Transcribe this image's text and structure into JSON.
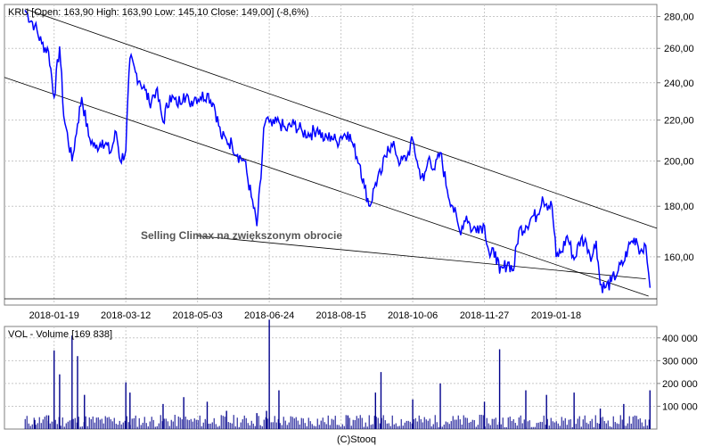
{
  "footer": "(C)Stooq",
  "colors": {
    "price": "#0000ff",
    "volume": "#00008b",
    "grid": "#c8c8c8",
    "frame": "#7f7f7f",
    "trend": "#000000"
  },
  "chart_data": [
    {
      "type": "line",
      "title": "KRU [Open: 163,90  High: 163,90  Low: 145,10  Close: 149,00]  (-8,6%)",
      "x_tick_labels": [
        "2018-01-19",
        "2018-03-12",
        "2018-05-03",
        "2018-06-24",
        "2018-08-15",
        "2018-10-06",
        "2018-11-27",
        "2019-01-18"
      ],
      "y_tick_labels": [
        "160,00",
        "180,00",
        "200,00",
        "220,00",
        "240,00",
        "260,00",
        "280,00"
      ],
      "y_scale": "log",
      "ylim": [
        143,
        288
      ],
      "annotation": "Selling Climax na zwiększonym obrocie",
      "grid": true,
      "series": [
        {
          "x": [
            "2017-12-29",
            "2018-01-05",
            "2018-01-10",
            "2018-01-15",
            "2018-01-19",
            "2018-01-23",
            "2018-01-26",
            "2018-02-01",
            "2018-02-05",
            "2018-02-08",
            "2018-02-13",
            "2018-02-18",
            "2018-02-23",
            "2018-03-01",
            "2018-03-05",
            "2018-03-08",
            "2018-03-12",
            "2018-03-15",
            "2018-03-19",
            "2018-03-22",
            "2018-03-26",
            "2018-03-29",
            "2018-04-03",
            "2018-04-08",
            "2018-04-13",
            "2018-04-18",
            "2018-04-23",
            "2018-04-27",
            "2018-05-01",
            "2018-05-05",
            "2018-05-10",
            "2018-05-15",
            "2018-05-20",
            "2018-05-24",
            "2018-05-28",
            "2018-06-01",
            "2018-06-06",
            "2018-06-11",
            "2018-06-15",
            "2018-06-18",
            "2018-06-20",
            "2018-06-22",
            "2018-06-24",
            "2018-06-26",
            "2018-07-01",
            "2018-07-06",
            "2018-07-12",
            "2018-07-18",
            "2018-07-24",
            "2018-07-29",
            "2018-08-03",
            "2018-08-08",
            "2018-08-12",
            "2018-08-15",
            "2018-08-20",
            "2018-08-24",
            "2018-08-29",
            "2018-09-01",
            "2018-09-05",
            "2018-09-09",
            "2018-09-13",
            "2018-09-18",
            "2018-09-23",
            "2018-09-27",
            "2018-10-02",
            "2018-10-06",
            "2018-10-10",
            "2018-10-14",
            "2018-10-18",
            "2018-10-22",
            "2018-10-26",
            "2018-10-31",
            "2018-11-04",
            "2018-11-09",
            "2018-11-14",
            "2018-11-18",
            "2018-11-22",
            "2018-11-27",
            "2018-12-01",
            "2018-12-05",
            "2018-12-08",
            "2018-12-11",
            "2018-12-14",
            "2018-12-18",
            "2018-12-22",
            "2018-12-27",
            "2019-01-01",
            "2019-01-04",
            "2019-01-08",
            "2019-01-11",
            "2019-01-15",
            "2019-01-18",
            "2019-01-22",
            "2019-01-26",
            "2019-01-31",
            "2019-02-05",
            "2019-02-09",
            "2019-02-13",
            "2019-02-16",
            "2019-02-19",
            "2019-02-23",
            "2019-02-27",
            "2019-03-04",
            "2019-03-08",
            "2019-03-11",
            "2019-03-14",
            "2019-03-17",
            "2019-03-20",
            "2019-03-23",
            "2019-03-25",
            "2019-03-27"
          ],
          "values": [
            284,
            274,
            263,
            258,
            232,
            261,
            222,
            200,
            218,
            232,
            212,
            206,
            210,
            204,
            214,
            200,
            205,
            254,
            246,
            241,
            236,
            229,
            236,
            219,
            233,
            228,
            234,
            229,
            232,
            232,
            234,
            228,
            212,
            210,
            208,
            203,
            200,
            184,
            172,
            192,
            216,
            221,
            219,
            217,
            219,
            215,
            218,
            214,
            213,
            216,
            210,
            212,
            209,
            212,
            214,
            207,
            198,
            188,
            180,
            190,
            194,
            207,
            206,
            199,
            202,
            210,
            197,
            191,
            202,
            196,
            204,
            187,
            180,
            170,
            176,
            170,
            172,
            172,
            160,
            162,
            154,
            156,
            158,
            155,
            170,
            172,
            176,
            176,
            184,
            181,
            180,
            160,
            162,
            168,
            159,
            167,
            165,
            160,
            166,
            150,
            149,
            151,
            155,
            158,
            163,
            166,
            167,
            162,
            165,
            158,
            149
          ]
        }
      ]
    },
    {
      "type": "bar",
      "title": "VOL - Volume [169 838]",
      "y_tick_labels": [
        "100 000",
        "200 000",
        "300 000",
        "400 000"
      ],
      "ylim": [
        0,
        450000
      ],
      "grid": true,
      "series": [
        {
          "x": [
            "2018-01-05",
            "2018-01-15",
            "2018-01-19",
            "2018-01-23",
            "2018-02-01",
            "2018-02-05",
            "2018-02-10",
            "2018-03-12",
            "2018-03-15",
            "2018-04-08",
            "2018-04-23",
            "2018-05-10",
            "2018-05-24",
            "2018-06-15",
            "2018-06-22",
            "2018-06-24",
            "2018-07-01",
            "2018-08-20",
            "2018-09-09",
            "2018-09-13",
            "2018-10-06",
            "2018-10-26",
            "2018-11-27",
            "2018-12-08",
            "2018-12-27",
            "2019-01-11",
            "2019-01-31",
            "2019-02-19",
            "2019-03-08",
            "2019-03-27"
          ],
          "values": [
            40000,
            60000,
            345000,
            240000,
            410000,
            320000,
            150000,
            205000,
            160000,
            110000,
            140000,
            120000,
            80000,
            70000,
            80000,
            480000,
            170000,
            60000,
            160000,
            250000,
            130000,
            200000,
            120000,
            350000,
            170000,
            150000,
            160000,
            90000,
            110000,
            170000
          ]
        }
      ]
    }
  ]
}
